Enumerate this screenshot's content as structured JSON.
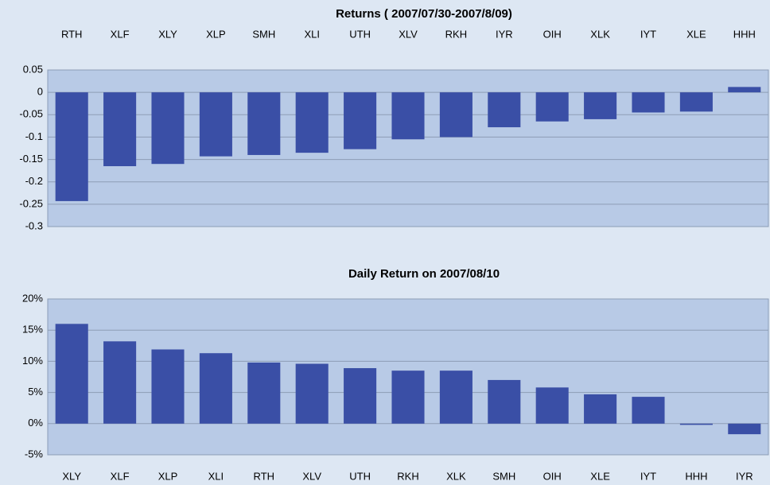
{
  "chart_data": [
    {
      "type": "bar",
      "title": "Returns ( 2007/07/30-2007/8/09)",
      "categories": [
        "RTH",
        "XLF",
        "XLY",
        "XLP",
        "SMH",
        "XLI",
        "UTH",
        "XLV",
        "RKH",
        "IYR",
        "OIH",
        "XLK",
        "IYT",
        "XLE",
        "HHH"
      ],
      "values": [
        -0.243,
        -0.165,
        -0.16,
        -0.143,
        -0.14,
        -0.135,
        -0.127,
        -0.105,
        -0.1,
        -0.078,
        -0.065,
        -0.06,
        -0.045,
        -0.043,
        0.012
      ],
      "color": "#3a4fa6",
      "ylim": [
        -0.3,
        0.05
      ],
      "yticks": [
        0.05,
        0,
        -0.05,
        -0.1,
        -0.15,
        -0.2,
        -0.25,
        -0.3
      ],
      "grid": true
    },
    {
      "type": "bar",
      "title": "Daily Return on 2007/08/10",
      "categories": [
        "XLY",
        "XLF",
        "XLP",
        "XLI",
        "RTH",
        "XLV",
        "UTH",
        "RKH",
        "XLK",
        "SMH",
        "OIH",
        "XLE",
        "IYT",
        "HHH",
        "IYR"
      ],
      "values": [
        16,
        13.2,
        11.9,
        11.3,
        9.8,
        9.6,
        8.9,
        8.5,
        8.5,
        7,
        5.8,
        4.7,
        4.3,
        -0.2,
        -1.7
      ],
      "color": "#3a4fa6",
      "ylim": [
        -5,
        20
      ],
      "yticks": [
        {
          "value": 20,
          "label": "20%"
        },
        {
          "value": 15,
          "label": "15%"
        },
        {
          "value": 10,
          "label": "10%"
        },
        {
          "value": 5,
          "label": "5%"
        },
        {
          "value": 0,
          "label": "0%"
        },
        {
          "value": -5,
          "label": "-5%"
        }
      ],
      "grid": true
    }
  ]
}
